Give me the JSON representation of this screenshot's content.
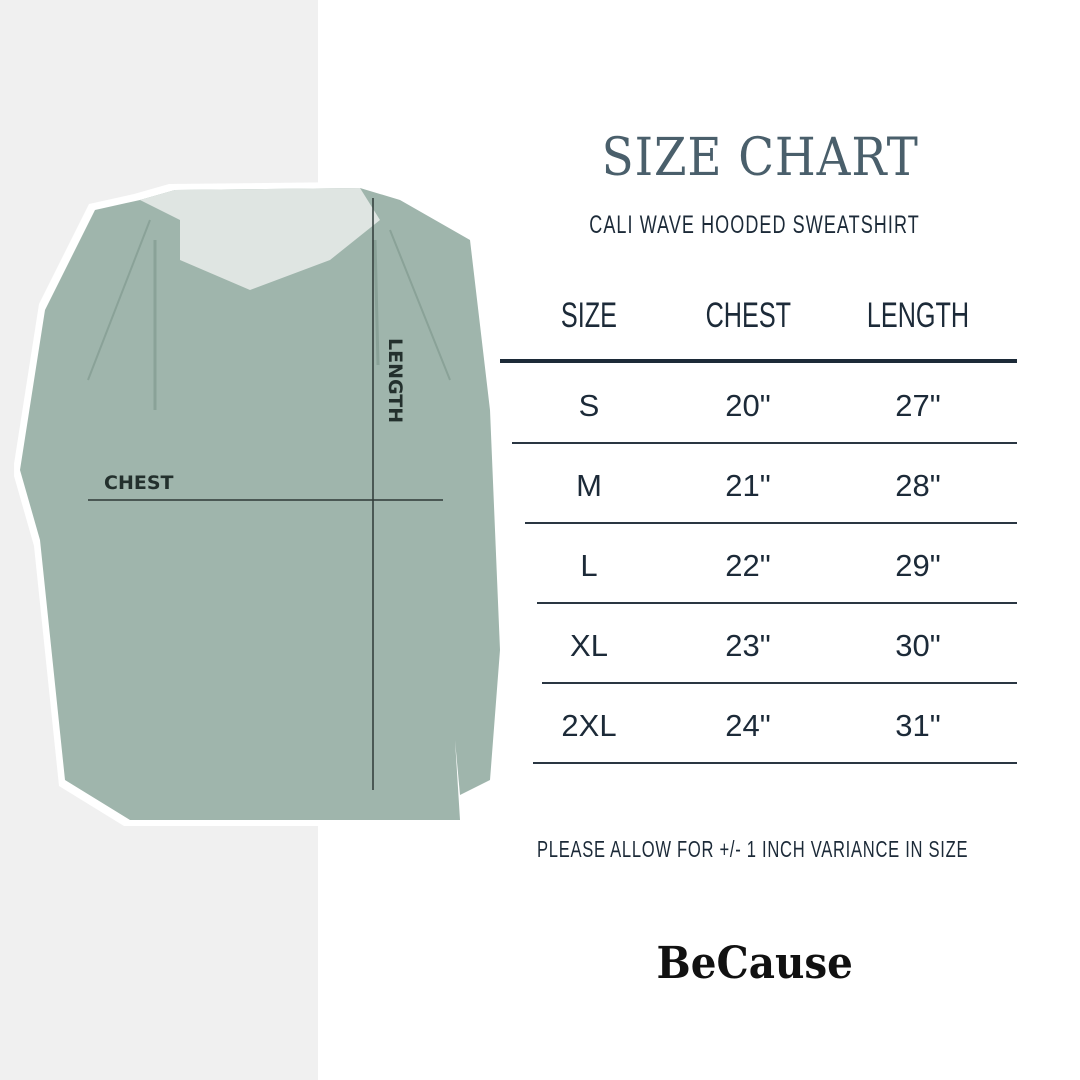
{
  "title": "SIZE CHART",
  "subtitle": "CALI WAVE HOODED SWEATSHIRT",
  "diagram": {
    "chest_label": "CHEST",
    "length_label": "LENGTH"
  },
  "table": {
    "headers": [
      "SIZE",
      "CHEST",
      "LENGTH"
    ],
    "rows": [
      [
        "S",
        "20\"",
        "27\""
      ],
      [
        "M",
        "21\"",
        "28\""
      ],
      [
        "L",
        "22\"",
        "29\""
      ],
      [
        "XL",
        "23\"",
        "30\""
      ],
      [
        "2XL",
        "24\"",
        "31\""
      ]
    ]
  },
  "note": "PLEASE ALLOW FOR +/- 1 INCH VARIANCE IN SIZE",
  "brand": "BeCause",
  "colors": {
    "title": "#4a5f6b",
    "text": "#1c2a38",
    "hoodie": "#9fb5ac",
    "left_panel": "#f0f0f0"
  }
}
